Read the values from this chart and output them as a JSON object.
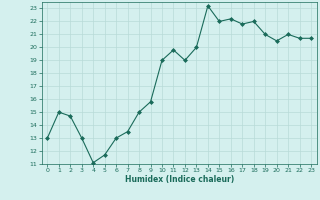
{
  "x": [
    0,
    1,
    2,
    3,
    4,
    5,
    6,
    7,
    8,
    9,
    10,
    11,
    12,
    13,
    14,
    15,
    16,
    17,
    18,
    19,
    20,
    21,
    22,
    23
  ],
  "y": [
    13,
    15,
    14.7,
    13,
    11.1,
    11.7,
    13,
    13.5,
    15,
    15.8,
    19,
    19.8,
    19,
    20,
    23.2,
    22,
    22.2,
    21.8,
    22,
    21,
    20.5,
    21,
    20.7,
    20.7
  ],
  "line_color": "#1a6b5a",
  "marker_color": "#1a6b5a",
  "bg_color": "#d4f0ee",
  "grid_color": "#b8dbd8",
  "xlabel": "Humidex (Indice chaleur)",
  "ylim": [
    11,
    23.5
  ],
  "xlim": [
    -0.5,
    23.5
  ],
  "yticks": [
    11,
    12,
    13,
    14,
    15,
    16,
    17,
    18,
    19,
    20,
    21,
    22,
    23
  ],
  "xticks": [
    0,
    1,
    2,
    3,
    4,
    5,
    6,
    7,
    8,
    9,
    10,
    11,
    12,
    13,
    14,
    15,
    16,
    17,
    18,
    19,
    20,
    21,
    22,
    23
  ]
}
